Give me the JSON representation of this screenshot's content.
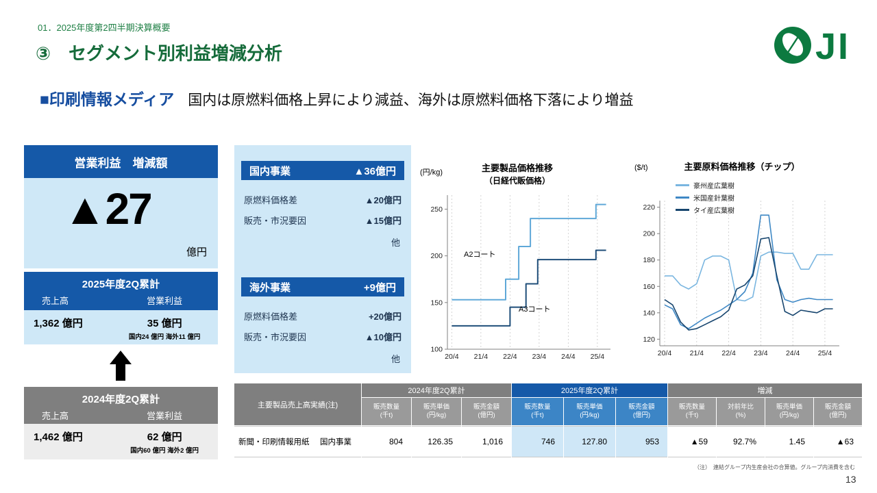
{
  "page": {
    "breadcrumb": "01．2025年度第2四半期決算概要",
    "title": "③　セグメント別利益増減分析",
    "logo_text": "JI",
    "page_number": "13"
  },
  "subtitle": {
    "segment": "■印刷情報メディア",
    "description": "国内は原燃料価格上昇により減益、海外は原燃料価格下落により増益"
  },
  "left_panel": {
    "header": "営業利益　増減額",
    "big_value": "▲27",
    "big_unit": "億円",
    "fy2025": {
      "title": "2025年度2Q累計",
      "col1": "売上高",
      "col2": "営業利益",
      "sales": "1,362 億円",
      "profit": "35 億円",
      "breakdown": "国内24 億円 海外11 億円"
    },
    "fy2024": {
      "title": "2024年度2Q累計",
      "col1": "売上高",
      "col2": "営業利益",
      "sales": "1,462 億円",
      "profit": "62 億円",
      "breakdown": "国内60 億円 海外2 億円"
    }
  },
  "bridge": {
    "domestic": {
      "label": "国内事業",
      "value": "▲36億円",
      "rows": [
        {
          "label": "原燃料価格差",
          "value": "▲20億円"
        },
        {
          "label": "販売・市況要因",
          "value": "▲15億円"
        }
      ],
      "other": "他"
    },
    "overseas": {
      "label": "海外事業",
      "value": "+9億円",
      "rows": [
        {
          "label": "原燃料価格差",
          "value": "+20億円"
        },
        {
          "label": "販売・市況要因",
          "value": "▲10億円"
        }
      ],
      "other": "他"
    }
  },
  "chart_data": [
    {
      "type": "line",
      "title": "主要製品価格推移",
      "subtitle": "（日経代販価格）",
      "ylabel": "(円/kg)",
      "xlim": [
        -0.15,
        5.45
      ],
      "ylim": [
        100,
        265
      ],
      "yticks": [
        100,
        150,
        200,
        250
      ],
      "xticks": [
        "20/4",
        "21/4",
        "22/4",
        "23/4",
        "24/4",
        "25/4"
      ],
      "legend_position": "inline-annotations",
      "grid": "vertical-dashed",
      "series": [
        {
          "name": "A2コート",
          "color": "#5fa8d8",
          "width": 2,
          "points": [
            [
              0,
              153
            ],
            [
              1.85,
              153
            ],
            [
              1.85,
              175
            ],
            [
              2.3,
              175
            ],
            [
              2.3,
              210
            ],
            [
              2.7,
              210
            ],
            [
              2.7,
              240
            ],
            [
              4.95,
              240
            ],
            [
              4.95,
              255
            ],
            [
              5.3,
              255
            ]
          ]
        },
        {
          "name": "A3コート",
          "color": "#1f4e79",
          "width": 2,
          "points": [
            [
              0,
              125
            ],
            [
              2.0,
              125
            ],
            [
              2.0,
              145
            ],
            [
              2.55,
              145
            ],
            [
              2.55,
              170
            ],
            [
              2.95,
              170
            ],
            [
              2.95,
              196
            ],
            [
              4.95,
              196
            ],
            [
              4.95,
              206
            ],
            [
              5.3,
              206
            ]
          ]
        }
      ]
    },
    {
      "type": "line",
      "title": "主要原料価格推移（チップ）",
      "ylabel": "($/t)",
      "xlim": [
        -0.15,
        5.45
      ],
      "ylim": [
        115,
        225
      ],
      "yticks": [
        120,
        140,
        160,
        180,
        200,
        220
      ],
      "xticks": [
        "20/4",
        "21/4",
        "22/4",
        "23/4",
        "24/4",
        "25/4"
      ],
      "legend_position": "top-left",
      "grid": "vertical-dashed",
      "series": [
        {
          "name": "豪州産広葉樹",
          "color": "#7ab6e0",
          "width": 1.6,
          "x_start": 0,
          "x_step": 0.25,
          "values": [
            168,
            168,
            161,
            158,
            162,
            180,
            183,
            183,
            180,
            150,
            149,
            152,
            183,
            186,
            186,
            185,
            185,
            173,
            173,
            184,
            184,
            184
          ]
        },
        {
          "name": "米国産針葉樹",
          "color": "#3f88c5",
          "width": 1.6,
          "x_start": 0,
          "x_step": 0.25,
          "values": [
            146,
            143,
            131,
            128,
            132,
            136,
            139,
            142,
            146,
            150,
            156,
            170,
            214,
            214,
            165,
            150,
            148,
            150,
            151,
            150,
            150,
            150
          ]
        },
        {
          "name": "タイ産広葉樹",
          "color": "#17456e",
          "width": 1.6,
          "x_start": 0,
          "x_step": 0.25,
          "values": [
            150,
            146,
            133,
            127,
            128,
            131,
            134,
            137,
            142,
            158,
            161,
            168,
            196,
            197,
            168,
            141,
            138,
            142,
            141,
            140,
            143,
            143
          ]
        }
      ]
    }
  ],
  "table": {
    "row_header": "主要製品売上高実績(注)",
    "group_2024": "2024年度2Q累計",
    "group_2025": "2025年度2Q累計",
    "group_delta": "増減",
    "sub": [
      {
        "n": "販売数量",
        "u": "(千t)"
      },
      {
        "n": "販売単価",
        "u": "(円/kg)"
      },
      {
        "n": "販売金額",
        "u": "(億円)"
      },
      {
        "n": "販売数量",
        "u": "(千t)"
      },
      {
        "n": "販売単価",
        "u": "(円/kg)"
      },
      {
        "n": "販売金額",
        "u": "(億円)"
      },
      {
        "n": "販売数量",
        "u": "(千t)"
      },
      {
        "n": "対前年比",
        "u": "(%)"
      },
      {
        "n": "販売単価",
        "u": "(円/kg)"
      },
      {
        "n": "販売金額",
        "u": "(億円)"
      }
    ],
    "row_label": "新聞・印刷情報用紙",
    "row_segment": "国内事業",
    "values": [
      "804",
      "126.35",
      "1,016",
      "746",
      "127.80",
      "953",
      "▲59",
      "92.7%",
      "1.45",
      "▲63"
    ]
  },
  "footnote": "（注）　連結グループ内生産会社の合算値。グループ内消費を含む",
  "colors": {
    "brand_green": "#0c7a40",
    "title_green": "#156b3a",
    "dark_blue": "#1559a8",
    "mid_blue": "#3c85c6",
    "light_blue_bg": "#cfe8f7",
    "gray_header": "#7f7f7f",
    "gray_sub": "#9a9a9a"
  }
}
